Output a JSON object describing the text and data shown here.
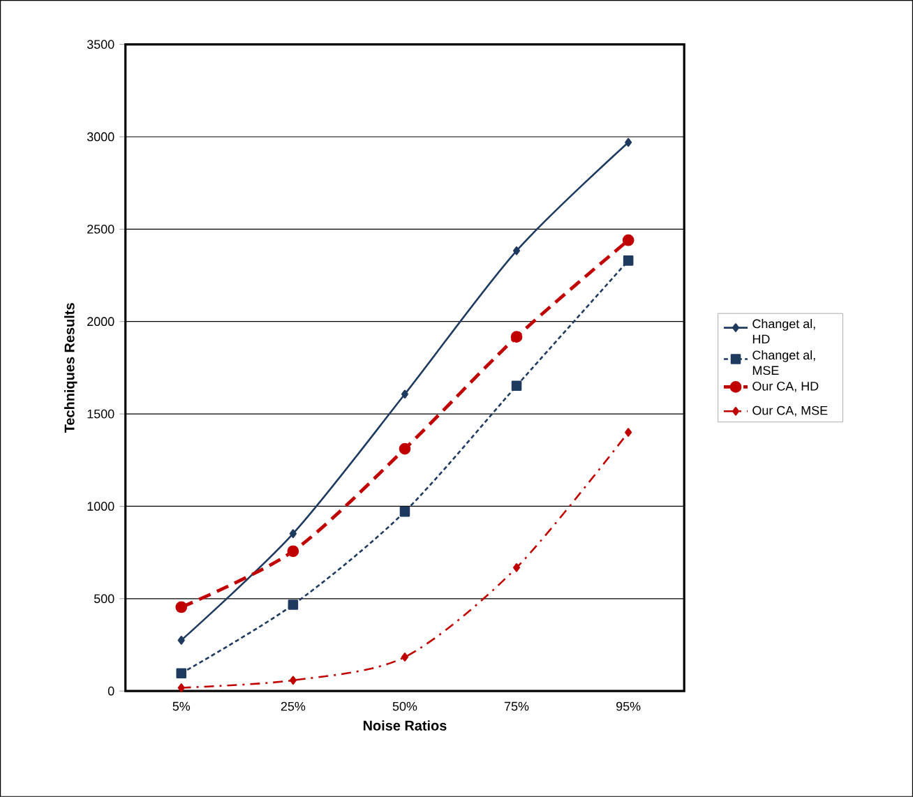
{
  "chart_data": {
    "type": "line",
    "xlabel": "Noise Ratios",
    "ylabel": "Techniques Results",
    "categories": [
      "5%",
      "25%",
      "50%",
      "75%",
      "95%"
    ],
    "series": [
      {
        "name": "Changet al, HD",
        "color": "#1f3a5f",
        "values": [
          275,
          852,
          1607,
          2383,
          2970
        ],
        "marker": "diamond",
        "line_style": "solid"
      },
      {
        "name": "Changet al, MSE",
        "color": "#1f3a5f",
        "values": [
          96,
          467,
          971,
          1652,
          2330
        ],
        "marker": "square",
        "line_style": "dotted"
      },
      {
        "name": "Our CA, HD",
        "color": "#c00000",
        "values": [
          454,
          757,
          1311,
          1917,
          2440
        ],
        "marker": "circle",
        "line_style": "dashed"
      },
      {
        "name": "Our CA, MSE",
        "color": "#c00000",
        "values": [
          18,
          58,
          184,
          668,
          1400
        ],
        "marker": "diamond",
        "line_style": "dashdot"
      }
    ],
    "ylim": [
      0,
      3500
    ],
    "yticks": [
      0,
      500,
      1000,
      1500,
      2000,
      2500,
      3000,
      3500
    ],
    "grid": "y",
    "legend": "right"
  }
}
